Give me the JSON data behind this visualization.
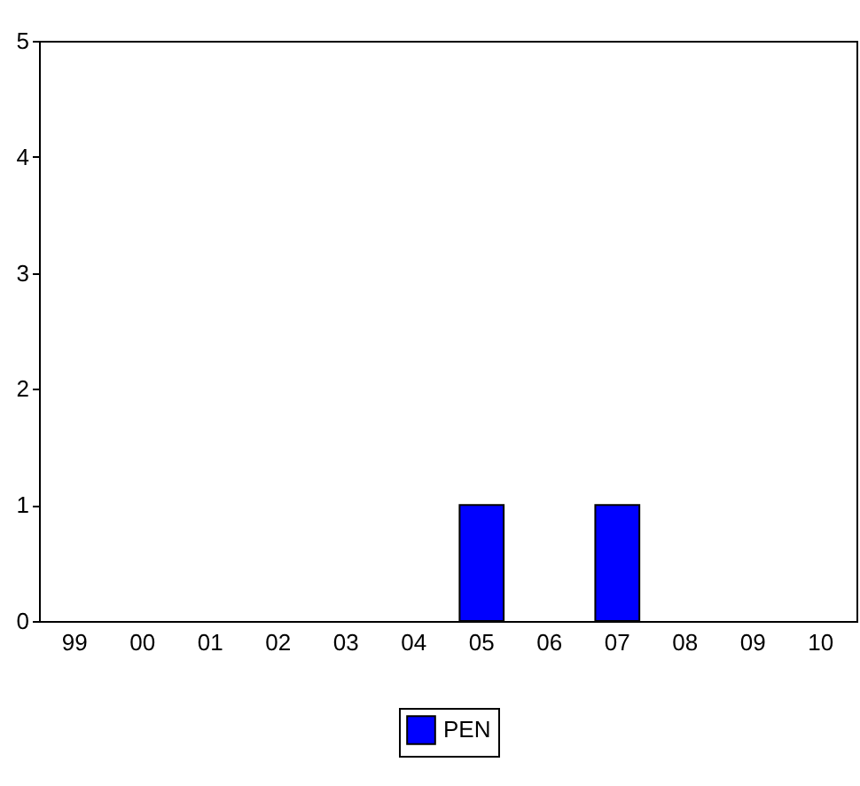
{
  "chart_data": {
    "type": "bar",
    "categories": [
      "99",
      "00",
      "01",
      "02",
      "03",
      "04",
      "05",
      "06",
      "07",
      "08",
      "09",
      "10"
    ],
    "series": [
      {
        "name": "PEN",
        "color": "#0000ff",
        "values": [
          0,
          0,
          0,
          0,
          0,
          0,
          1,
          0,
          1,
          0,
          0,
          0
        ]
      }
    ],
    "ylim": [
      0,
      5
    ],
    "yticks": [
      0,
      1,
      2,
      3,
      4,
      5
    ],
    "grid": false,
    "legend": "bottom"
  }
}
